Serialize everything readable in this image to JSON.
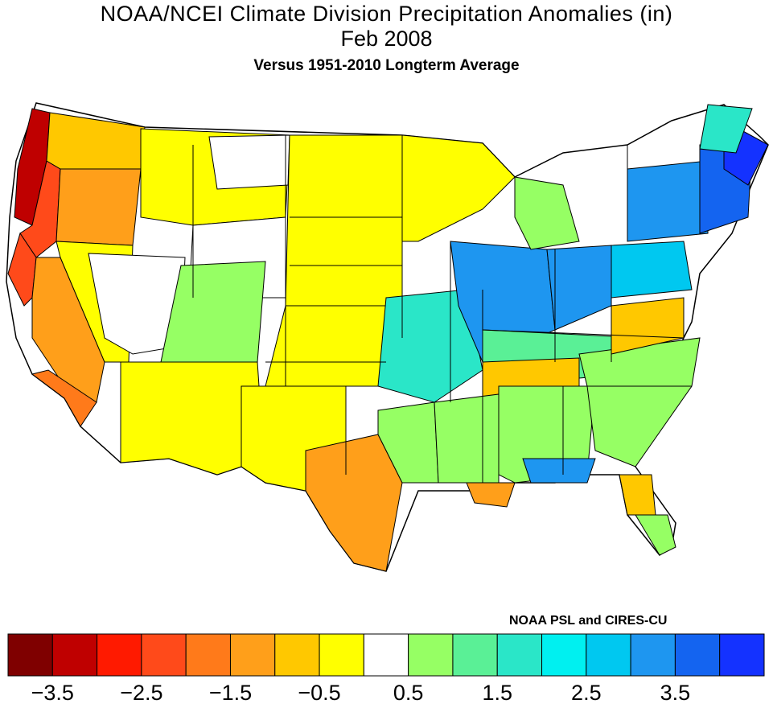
{
  "title_line1": "NOAA/NCEI Climate Division Precipitation Anomalies (in)",
  "title_line2": "Feb 2008",
  "subtitle": "Versus 1951-2010 Longterm Average",
  "credit": "NOAA PSL and CIRES-CU",
  "legend": {
    "colors": [
      "#7f0000",
      "#bf0000",
      "#ff1a00",
      "#ff4a1a",
      "#ff7a1a",
      "#ff9f1a",
      "#ffc800",
      "#ffff00",
      "#ffffff",
      "#96ff64",
      "#5af096",
      "#2ae6c8",
      "#00f0f0",
      "#00c8f0",
      "#1e96f0",
      "#1464f0",
      "#1432ff"
    ],
    "tick_labels": [
      "-3.5",
      "-2.5",
      "-1.5",
      "-0.5",
      "0.5",
      "1.5",
      "2.5",
      "3.5"
    ]
  },
  "map_regions": [
    {
      "name": "pacific-nw-coast",
      "color": "#bf0000"
    },
    {
      "name": "nw-oregon",
      "color": "#ff4a1a"
    },
    {
      "name": "washington-interior",
      "color": "#ffc800"
    },
    {
      "name": "oregon-interior",
      "color": "#ff9f1a"
    },
    {
      "name": "california-coast",
      "color": "#ff4a1a"
    },
    {
      "name": "california-central",
      "color": "#ff9f1a"
    },
    {
      "name": "socal",
      "color": "#ff7a1a"
    },
    {
      "name": "great-basin",
      "color": "#ffff00"
    },
    {
      "name": "nevada-utah",
      "color": "#ffffff"
    },
    {
      "name": "idaho-montana",
      "color": "#ffff00"
    },
    {
      "name": "montana-east",
      "color": "#ffffff"
    },
    {
      "name": "wyoming",
      "color": "#ffffff"
    },
    {
      "name": "colorado-utah",
      "color": "#96ff64"
    },
    {
      "name": "new-mexico-arizona",
      "color": "#ffff00"
    },
    {
      "name": "dakotas-nebraska",
      "color": "#ffff00"
    },
    {
      "name": "minnesota-wisconsin",
      "color": "#ffff00"
    },
    {
      "name": "kansas-oklahoma",
      "color": "#ffff00"
    },
    {
      "name": "texas-west",
      "color": "#ffff00"
    },
    {
      "name": "texas-central",
      "color": "#ff9f1a"
    },
    {
      "name": "texas-east",
      "color": "#96ff64"
    },
    {
      "name": "missouri",
      "color": "#2ae6c8"
    },
    {
      "name": "illinois-indiana",
      "color": "#1e96f0"
    },
    {
      "name": "ohio",
      "color": "#1e96f0"
    },
    {
      "name": "kentucky-tennessee",
      "color": "#5af096"
    },
    {
      "name": "tennessee-west",
      "color": "#ffc800"
    },
    {
      "name": "mississippi",
      "color": "#96ff64"
    },
    {
      "name": "louisiana",
      "color": "#ff9f1a"
    },
    {
      "name": "alabama-georgia",
      "color": "#96ff64"
    },
    {
      "name": "carolinas",
      "color": "#96ff64"
    },
    {
      "name": "virginia",
      "color": "#ffc800"
    },
    {
      "name": "florida-panhandle",
      "color": "#1e96f0"
    },
    {
      "name": "florida-north",
      "color": "#ffc800"
    },
    {
      "name": "florida-south",
      "color": "#96ff64"
    },
    {
      "name": "michigan",
      "color": "#96ff64"
    },
    {
      "name": "pennsylvania",
      "color": "#00c8f0"
    },
    {
      "name": "new-york",
      "color": "#1e96f0"
    },
    {
      "name": "new-england",
      "color": "#1464f0"
    },
    {
      "name": "maine-coast",
      "color": "#1432ff"
    },
    {
      "name": "maine-north",
      "color": "#2ae6c8"
    }
  ]
}
